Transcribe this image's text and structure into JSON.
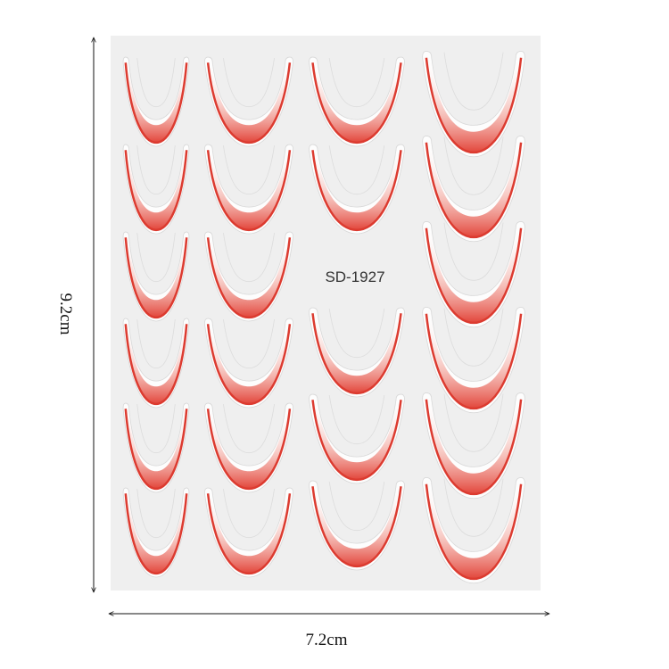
{
  "sheet": {
    "code": "SD-1927"
  },
  "dimensions": {
    "height": "9.2cm",
    "width": "7.2cm"
  }
}
